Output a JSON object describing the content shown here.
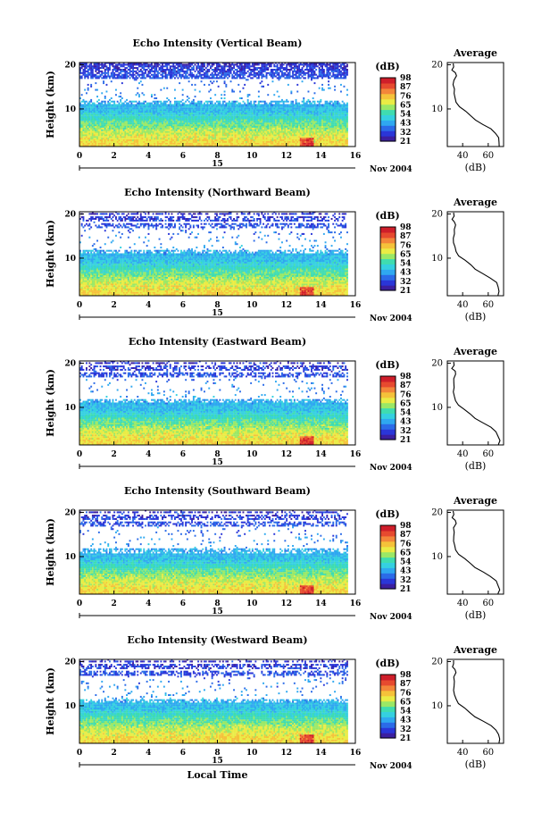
{
  "chart_data": [
    {
      "type": "heatmap",
      "title": "Echo Intensity (Vertical Beam)",
      "ylabel": "Height (km)",
      "x_ticks": [
        "0",
        "2",
        "4",
        "6",
        "8",
        "10",
        "12",
        "14",
        "16"
      ],
      "xlim": [
        0,
        16
      ],
      "y_ticks": [
        "20",
        "10"
      ],
      "ylim": [
        1.5,
        20.5
      ],
      "date_day": "15",
      "date_month_year": "Nov 2004",
      "colorbar_label": "(dB)",
      "colorbar_ticks": [
        "98",
        "87",
        "76",
        "65",
        "54",
        "43",
        "32",
        "21"
      ],
      "colorbar_range": [
        21,
        98
      ],
      "profile": {
        "title": "Average",
        "xlabel": "(dB)",
        "x_ticks": [
          "40",
          "60"
        ],
        "y_ticks": [
          "20",
          "10"
        ],
        "xlim": [
          28,
          72
        ]
      }
    },
    {
      "type": "heatmap",
      "title": "Echo Intensity (Northward Beam)",
      "ylabel": "Height (km)",
      "x_ticks": [
        "0",
        "2",
        "4",
        "6",
        "8",
        "10",
        "12",
        "14",
        "16"
      ],
      "xlim": [
        0,
        16
      ],
      "y_ticks": [
        "20",
        "10"
      ],
      "ylim": [
        1.5,
        20.5
      ],
      "date_day": "15",
      "date_month_year": "Nov 2004",
      "colorbar_label": "(dB)",
      "colorbar_ticks": [
        "98",
        "87",
        "76",
        "65",
        "54",
        "43",
        "32",
        "21"
      ],
      "colorbar_range": [
        21,
        98
      ],
      "profile": {
        "title": "Average",
        "xlabel": "(dB)",
        "x_ticks": [
          "40",
          "60"
        ],
        "y_ticks": [
          "20",
          "10"
        ],
        "xlim": [
          28,
          72
        ]
      }
    },
    {
      "type": "heatmap",
      "title": "Echo Intensity (Eastward Beam)",
      "ylabel": "Height (km)",
      "x_ticks": [
        "0",
        "2",
        "4",
        "6",
        "8",
        "10",
        "12",
        "14",
        "16"
      ],
      "xlim": [
        0,
        16
      ],
      "y_ticks": [
        "20",
        "10"
      ],
      "ylim": [
        1.5,
        20.5
      ],
      "date_day": "15",
      "date_month_year": "Nov 2004",
      "colorbar_label": "(dB)",
      "colorbar_ticks": [
        "98",
        "87",
        "76",
        "65",
        "54",
        "43",
        "32",
        "21"
      ],
      "colorbar_range": [
        21,
        98
      ],
      "profile": {
        "title": "Average",
        "xlabel": "(dB)",
        "x_ticks": [
          "40",
          "60"
        ],
        "y_ticks": [
          "20",
          "10"
        ],
        "xlim": [
          28,
          72
        ]
      }
    },
    {
      "type": "heatmap",
      "title": "Echo Intensity (Southward Beam)",
      "ylabel": "Height (km)",
      "x_ticks": [
        "0",
        "2",
        "4",
        "6",
        "8",
        "10",
        "12",
        "14",
        "16"
      ],
      "xlim": [
        0,
        16
      ],
      "y_ticks": [
        "20",
        "10"
      ],
      "ylim": [
        1.5,
        20.5
      ],
      "date_day": "15",
      "date_month_year": "Nov 2004",
      "colorbar_label": "(dB)",
      "colorbar_ticks": [
        "98",
        "87",
        "76",
        "65",
        "54",
        "43",
        "32",
        "21"
      ],
      "colorbar_range": [
        21,
        98
      ],
      "profile": {
        "title": "Average",
        "xlabel": "(dB)",
        "x_ticks": [
          "40",
          "60"
        ],
        "y_ticks": [
          "20",
          "10"
        ],
        "xlim": [
          28,
          72
        ]
      }
    },
    {
      "type": "heatmap",
      "title": "Echo Intensity (Westward Beam)",
      "ylabel": "Height (km)",
      "xlabel": "Local Time",
      "x_ticks": [
        "0",
        "2",
        "4",
        "6",
        "8",
        "10",
        "12",
        "14",
        "16"
      ],
      "xlim": [
        0,
        16
      ],
      "y_ticks": [
        "20",
        "10"
      ],
      "ylim": [
        1.5,
        20.5
      ],
      "date_day": "15",
      "date_month_year": "Nov 2004",
      "colorbar_label": "(dB)",
      "colorbar_ticks": [
        "98",
        "87",
        "76",
        "65",
        "54",
        "43",
        "32",
        "21"
      ],
      "colorbar_range": [
        21,
        98
      ],
      "profile": {
        "title": "Average",
        "xlabel": "(dB)",
        "x_ticks": [
          "40",
          "60"
        ],
        "y_ticks": [
          "20",
          "10"
        ],
        "xlim": [
          28,
          72
        ]
      }
    }
  ],
  "profile_shape": [
    [
      1.6,
      68
    ],
    [
      2.5,
      69
    ],
    [
      3.5,
      68
    ],
    [
      4.5,
      66
    ],
    [
      5.5,
      62
    ],
    [
      6.5,
      56
    ],
    [
      7.5,
      50
    ],
    [
      8.5,
      46
    ],
    [
      9.5,
      42
    ],
    [
      10.5,
      37
    ],
    [
      11.5,
      35
    ],
    [
      12.5,
      34
    ],
    [
      13.5,
      33
    ],
    [
      14.5,
      33
    ],
    [
      15.5,
      33
    ],
    [
      16.5,
      33
    ],
    [
      17.5,
      35
    ],
    [
      18.2,
      34
    ],
    [
      18.8,
      32
    ],
    [
      19.5,
      33
    ],
    [
      20.3,
      33
    ]
  ],
  "colormap": [
    "#3b1fa0",
    "#2a36d8",
    "#2b6be8",
    "#2fa8f0",
    "#35d0e0",
    "#3fdcb0",
    "#9ae866",
    "#eaec45",
    "#f5c23a",
    "#f3863a",
    "#e64a2f",
    "#cf1e2a"
  ]
}
